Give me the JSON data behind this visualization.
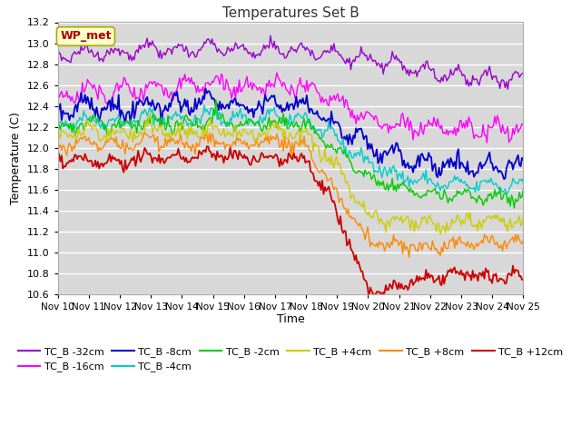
{
  "title": "Temperatures Set B",
  "xlabel": "Time",
  "ylabel": "Temperature (C)",
  "ylim": [
    10.6,
    13.2
  ],
  "xlim": [
    0,
    360
  ],
  "x_tick_labels": [
    "Nov 10",
    "Nov 11",
    "Nov 12",
    "Nov 13",
    "Nov 14",
    "Nov 15",
    "Nov 16",
    "Nov 17",
    "Nov 18",
    "Nov 19",
    "Nov 20",
    "Nov 21",
    "Nov 22",
    "Nov 23",
    "Nov 24",
    "Nov 25"
  ],
  "yticks": [
    10.6,
    10.8,
    11.0,
    11.2,
    11.4,
    11.6,
    11.8,
    12.0,
    12.2,
    12.4,
    12.6,
    12.8,
    13.0,
    13.2
  ],
  "wp_met_box_color": "#ffffcc",
  "wp_met_text_color": "#aa0000",
  "wp_met_border_color": "#aaaa00",
  "fig_bg_color": "#ffffff",
  "plot_bg_color": "#d8d8d8",
  "grid_color": "#ffffff",
  "series": [
    {
      "label": "TC_B -32cm",
      "color": "#9900cc",
      "lw": 1.0
    },
    {
      "label": "TC_B -16cm",
      "color": "#ff00ff",
      "lw": 1.0
    },
    {
      "label": "TC_B -8cm",
      "color": "#0000cc",
      "lw": 1.3
    },
    {
      "label": "TC_B -4cm",
      "color": "#00cccc",
      "lw": 1.0
    },
    {
      "label": "TC_B -2cm",
      "color": "#00cc00",
      "lw": 1.0
    },
    {
      "label": "TC_B +4cm",
      "color": "#cccc00",
      "lw": 1.0
    },
    {
      "label": "TC_B +8cm",
      "color": "#ff8800",
      "lw": 1.0
    },
    {
      "label": "TC_B +12cm",
      "color": "#cc0000",
      "lw": 1.3
    }
  ]
}
